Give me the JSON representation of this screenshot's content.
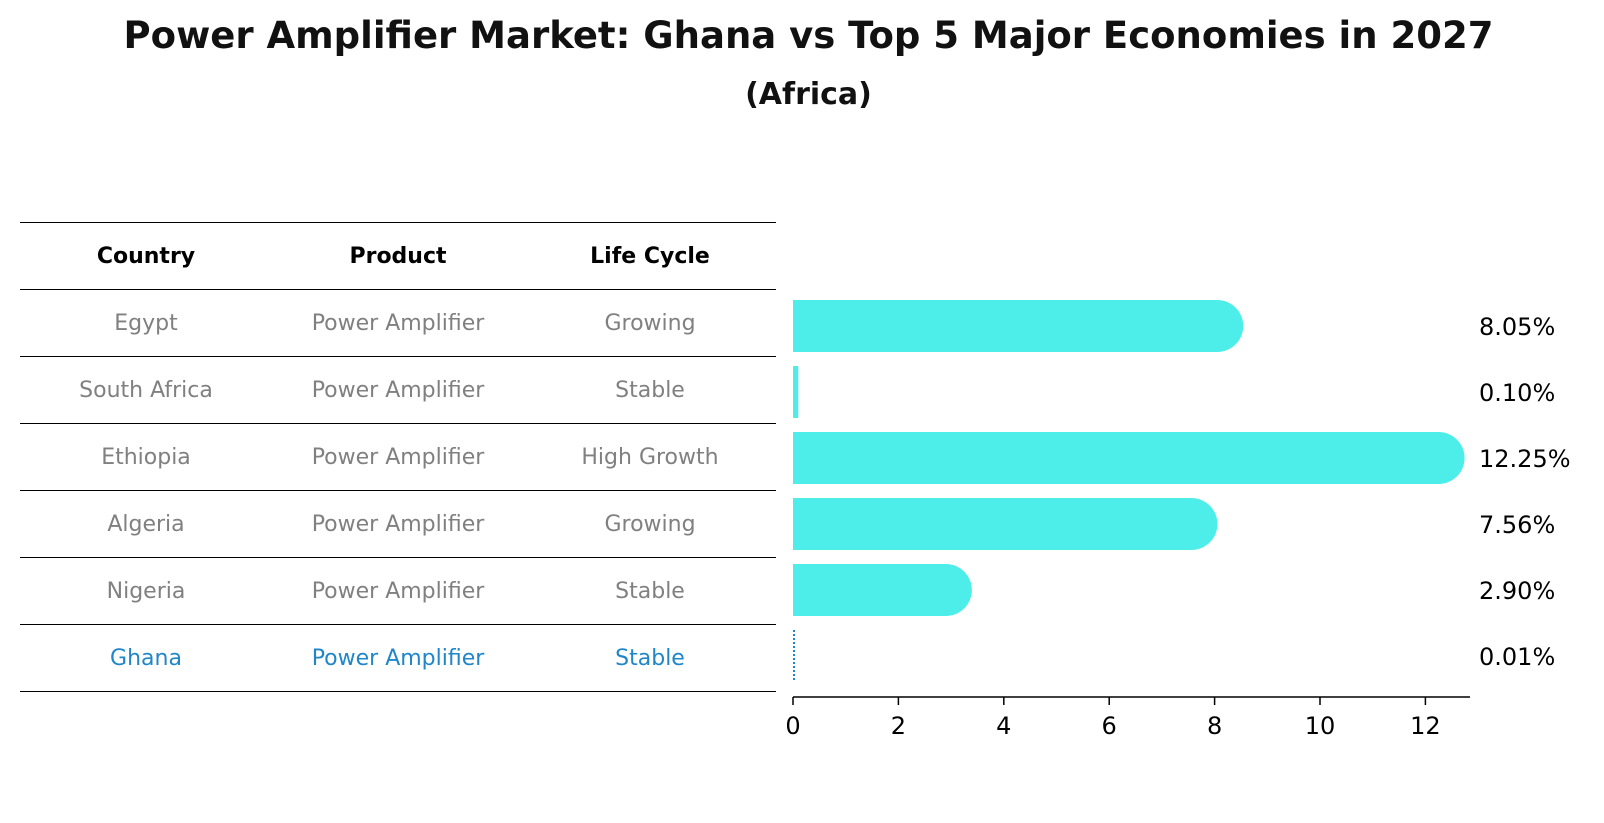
{
  "title": "Power Amplifier Market: Ghana vs Top 5 Major Economies in 2027",
  "subtitle": "(Africa)",
  "table": {
    "headers": [
      "Country",
      "Product",
      "Life Cycle"
    ],
    "rows": [
      {
        "country": "Egypt",
        "product": "Power Amplifier",
        "life_cycle": "Growing"
      },
      {
        "country": "South Africa",
        "product": "Power Amplifier",
        "life_cycle": "Stable"
      },
      {
        "country": "Ethiopia",
        "product": "Power Amplifier",
        "life_cycle": "High Growth"
      },
      {
        "country": "Algeria",
        "product": "Power Amplifier",
        "life_cycle": "Growing"
      },
      {
        "country": "Nigeria",
        "product": "Power Amplifier",
        "life_cycle": "Stable"
      },
      {
        "country": "Ghana",
        "product": "Power Amplifier",
        "life_cycle": "Stable"
      }
    ]
  },
  "colors": {
    "bar": "#4deeea",
    "highlight": "#1f86c9",
    "muted_text": "#808080"
  },
  "chart_data": {
    "type": "bar",
    "orientation": "horizontal",
    "categories": [
      "Egypt",
      "South Africa",
      "Ethiopia",
      "Algeria",
      "Nigeria",
      "Ghana"
    ],
    "values": [
      8.05,
      0.1,
      12.25,
      7.56,
      2.9,
      0.01
    ],
    "value_labels": [
      "8.05%",
      "0.10%",
      "12.25%",
      "7.56%",
      "2.90%",
      "0.01%"
    ],
    "highlight_category": "Ghana",
    "xlim": [
      0,
      12.86
    ],
    "xticks": [
      0,
      2,
      4,
      6,
      8,
      10,
      12
    ],
    "grid": false
  }
}
